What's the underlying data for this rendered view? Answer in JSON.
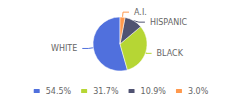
{
  "chart_data": {
    "type": "pie",
    "categories": [
      "WHITE",
      "BLACK",
      "HISPANIC",
      "A.I."
    ],
    "values": [
      54.5,
      31.7,
      10.9,
      3.0
    ],
    "value_labels": [
      "54.5%",
      "31.7%",
      "10.9%",
      "3.0%"
    ],
    "legend": "bottom"
  }
}
